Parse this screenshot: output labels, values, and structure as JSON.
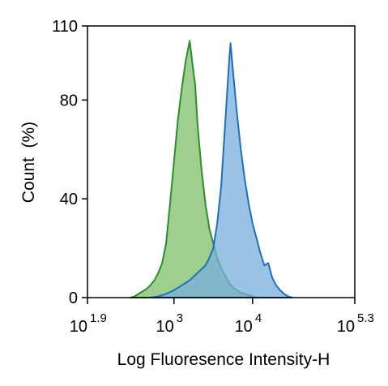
{
  "chart_data": {
    "type": "area",
    "xlabel": "Log Fluoresence Intensity-H",
    "ylabel": "Count  (%)",
    "xscale": "log",
    "xlim": [
      1.9,
      5.3
    ],
    "ylim": [
      0,
      110
    ],
    "x_ticks": [
      {
        "base": "10",
        "exp": "1.9",
        "value": 1.9
      },
      {
        "base": "10",
        "exp": "3",
        "value": 3
      },
      {
        "base": "10",
        "exp": "4",
        "value": 4
      },
      {
        "base": "10",
        "exp": "5.3",
        "value": 5.3
      }
    ],
    "y_ticks": [
      0,
      40,
      80,
      110
    ],
    "grid": false,
    "legend": "none",
    "series": [
      {
        "color": "#2e8b2e",
        "fill": "#7dbf6a",
        "points": [
          [
            2.45,
            0
          ],
          [
            2.5,
            0.5
          ],
          [
            2.55,
            1.5
          ],
          [
            2.6,
            2.5
          ],
          [
            2.65,
            3.5
          ],
          [
            2.7,
            5
          ],
          [
            2.75,
            7
          ],
          [
            2.8,
            10
          ],
          [
            2.85,
            14
          ],
          [
            2.9,
            22
          ],
          [
            2.95,
            38
          ],
          [
            3.0,
            55
          ],
          [
            3.05,
            72
          ],
          [
            3.1,
            85
          ],
          [
            3.15,
            96
          ],
          [
            3.2,
            104
          ],
          [
            3.23,
            96
          ],
          [
            3.27,
            86
          ],
          [
            3.3,
            70
          ],
          [
            3.35,
            52
          ],
          [
            3.4,
            38
          ],
          [
            3.45,
            28
          ],
          [
            3.5,
            22
          ],
          [
            3.55,
            16
          ],
          [
            3.6,
            12
          ],
          [
            3.65,
            9
          ],
          [
            3.7,
            6
          ],
          [
            3.75,
            4
          ],
          [
            3.8,
            3
          ],
          [
            3.85,
            2
          ],
          [
            3.9,
            1.5
          ],
          [
            3.95,
            1
          ],
          [
            4.0,
            0.5
          ],
          [
            4.05,
            0
          ]
        ]
      },
      {
        "color": "#1f6fb5",
        "fill": "#78aedc",
        "points": [
          [
            2.7,
            0
          ],
          [
            2.8,
            0.5
          ],
          [
            2.9,
            1.5
          ],
          [
            3.0,
            3
          ],
          [
            3.1,
            5
          ],
          [
            3.2,
            7
          ],
          [
            3.3,
            10
          ],
          [
            3.4,
            13
          ],
          [
            3.45,
            16
          ],
          [
            3.5,
            20
          ],
          [
            3.55,
            30
          ],
          [
            3.6,
            45
          ],
          [
            3.65,
            70
          ],
          [
            3.7,
            95
          ],
          [
            3.72,
            103
          ],
          [
            3.75,
            92
          ],
          [
            3.8,
            75
          ],
          [
            3.85,
            60
          ],
          [
            3.9,
            48
          ],
          [
            3.95,
            38
          ],
          [
            4.0,
            30
          ],
          [
            4.05,
            24
          ],
          [
            4.1,
            18
          ],
          [
            4.15,
            13
          ],
          [
            4.2,
            14
          ],
          [
            4.25,
            8
          ],
          [
            4.3,
            5
          ],
          [
            4.35,
            3
          ],
          [
            4.4,
            1.5
          ],
          [
            4.45,
            0.5
          ],
          [
            4.5,
            0
          ]
        ]
      }
    ]
  }
}
